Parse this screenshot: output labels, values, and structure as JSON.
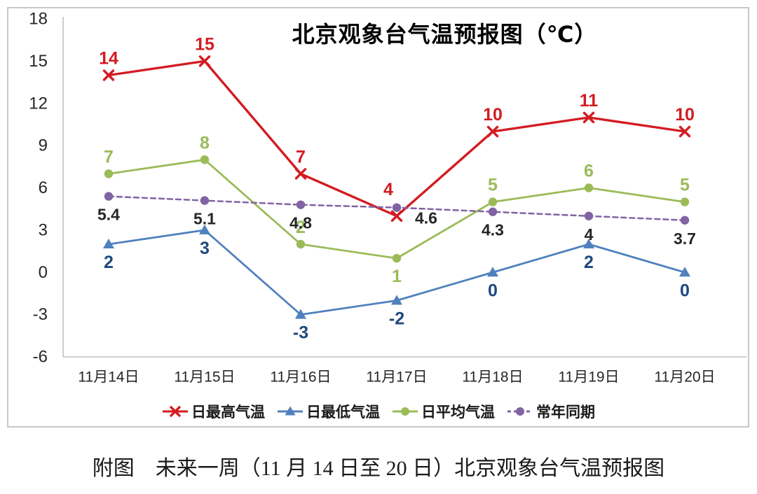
{
  "caption": "附图　未来一周（11 月 14 日至 20 日）北京观象台气温预报图",
  "chart_data": {
    "type": "line",
    "title": "北京观象台气温预报图（℃）",
    "xlabel": "",
    "ylabel": "",
    "unit": "℃",
    "categories": [
      "11月14日",
      "11月15日",
      "11月16日",
      "11月17日",
      "11月18日",
      "11月19日",
      "11月20日"
    ],
    "ylim": [
      -6,
      18
    ],
    "yticks": [
      18,
      15,
      12,
      9,
      6,
      3,
      0,
      -3,
      -6
    ],
    "grid": false,
    "legend_position": "bottom",
    "axis_color": "#bfbfbf",
    "tick_label_color": "#262626",
    "series": [
      {
        "id": "daily-max",
        "name": "日最高气温",
        "marker": "x",
        "dash": false,
        "color": "#d21c22",
        "label_color": "#d21c22",
        "values": [
          14,
          15,
          7,
          4,
          10,
          11,
          10
        ],
        "label_side": [
          "above",
          "above",
          "above",
          "above-left",
          "above",
          "above",
          "above"
        ]
      },
      {
        "id": "daily-min",
        "name": "日最低气温",
        "marker": "triangle",
        "dash": false,
        "color": "#4f81bd",
        "label_color": "#1f497d",
        "values": [
          2,
          3,
          -3,
          -2,
          0,
          2,
          0
        ],
        "label_side": [
          "below",
          "below",
          "below",
          "below",
          "below",
          "below",
          "below"
        ]
      },
      {
        "id": "daily-avg",
        "name": "日平均气温",
        "marker": "circle",
        "dash": false,
        "color": "#9bbb59",
        "label_color": "#9bbb59",
        "values": [
          7,
          8,
          2,
          1,
          5,
          6,
          5
        ],
        "label_side": [
          "above",
          "above",
          "above",
          "below",
          "above",
          "above",
          "above"
        ]
      },
      {
        "id": "climate-normal",
        "name": "常年同期",
        "marker": "circle",
        "dash": true,
        "color": "#8064a2",
        "label_color": "#262626",
        "values": [
          5.4,
          5.1,
          4.8,
          4.6,
          4.3,
          4,
          3.7
        ],
        "label_side": [
          "below",
          "below",
          "below",
          "right",
          "below",
          "below",
          "below"
        ]
      }
    ]
  }
}
